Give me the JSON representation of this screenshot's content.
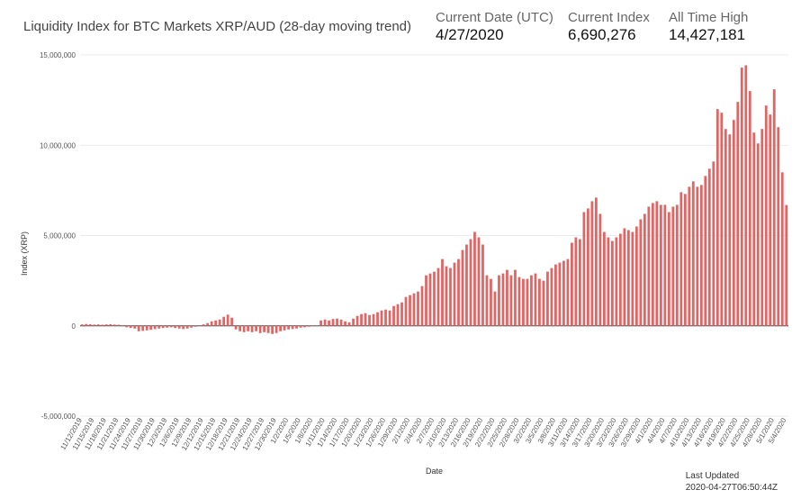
{
  "header": {
    "title": "Liquidity Index for BTC Markets XRP/AUD (28-day moving trend)",
    "current_date_label": "Current Date (UTC)",
    "current_date_value": "4/27/2020",
    "current_index_label": "Current Index",
    "current_index_value": "6,690,276",
    "ath_label": "All Time High",
    "ath_value": "14,427,181"
  },
  "footer": {
    "last_updated_label": "Last Updated",
    "last_updated_value": "2020-04-27T06:50:44Z"
  },
  "colors": {
    "bar": "#e06666",
    "grid": "#e4e4e4",
    "zero": "#444444"
  },
  "chart_data": {
    "type": "bar",
    "title": "Liquidity Index for BTC Markets XRP/AUD (28-day moving trend)",
    "xlabel": "Date",
    "ylabel": "Index (XRP)",
    "ylim": [
      -5000000,
      15000000
    ],
    "yticks": [
      {
        "value": 15000000,
        "label": "15,000,000"
      },
      {
        "value": 10000000,
        "label": "10,000,000"
      },
      {
        "value": 5000000,
        "label": "5,000,000"
      },
      {
        "value": 0,
        "label": "0"
      },
      {
        "value": -5000000,
        "label": "-5,000,000"
      }
    ],
    "grid": true,
    "start_date": "2019-11-12",
    "tick_every_days": 3,
    "values": [
      80000,
      100000,
      90000,
      70000,
      80000,
      60000,
      80000,
      90000,
      70000,
      60000,
      40000,
      -80000,
      -120000,
      -150000,
      -300000,
      -280000,
      -250000,
      -220000,
      -180000,
      -150000,
      -120000,
      -100000,
      -80000,
      -120000,
      -150000,
      -180000,
      -150000,
      -100000,
      -50000,
      30000,
      80000,
      150000,
      250000,
      300000,
      350000,
      500000,
      620000,
      450000,
      -200000,
      -300000,
      -350000,
      -300000,
      -350000,
      -300000,
      -400000,
      -350000,
      -400000,
      -450000,
      -400000,
      -300000,
      -250000,
      -200000,
      -180000,
      -150000,
      -100000,
      -80000,
      -50000,
      -30000,
      -20000,
      300000,
      350000,
      300000,
      380000,
      400000,
      350000,
      250000,
      200000,
      400000,
      550000,
      650000,
      700000,
      600000,
      650000,
      750000,
      850000,
      900000,
      850000,
      1100000,
      1200000,
      1300000,
      1600000,
      1700000,
      1800000,
      1900000,
      2200000,
      2800000,
      2900000,
      3000000,
      3200000,
      3700000,
      3300000,
      3200000,
      3500000,
      3700000,
      4200000,
      4500000,
      4800000,
      5200000,
      4900000,
      4500000,
      2800000,
      2600000,
      1900000,
      2800000,
      2900000,
      3100000,
      2800000,
      3100000,
      2700000,
      2600000,
      2600000,
      2800000,
      2900000,
      2600000,
      2500000,
      3000000,
      3200000,
      3400000,
      3500000,
      3600000,
      3700000,
      4600000,
      4900000,
      4800000,
      6300000,
      6500000,
      6900000,
      7100000,
      6200000,
      5200000,
      4900000,
      4700000,
      4900000,
      5100000,
      5400000,
      5300000,
      5200000,
      5500000,
      5900000,
      6200000,
      6600000,
      6800000,
      6900000,
      6700000,
      6700000,
      6300000,
      6600000,
      6700000,
      7400000,
      7300000,
      7700000,
      8000000,
      7700000,
      7800000,
      8300000,
      8700000,
      9100000,
      12000000,
      11800000,
      10900000,
      10600000,
      11400000,
      12400000,
      14300000,
      14427181,
      13000000,
      10700000,
      10100000,
      10900000,
      12200000,
      11700000,
      13100000,
      11000000,
      8500000,
      6690276
    ]
  }
}
